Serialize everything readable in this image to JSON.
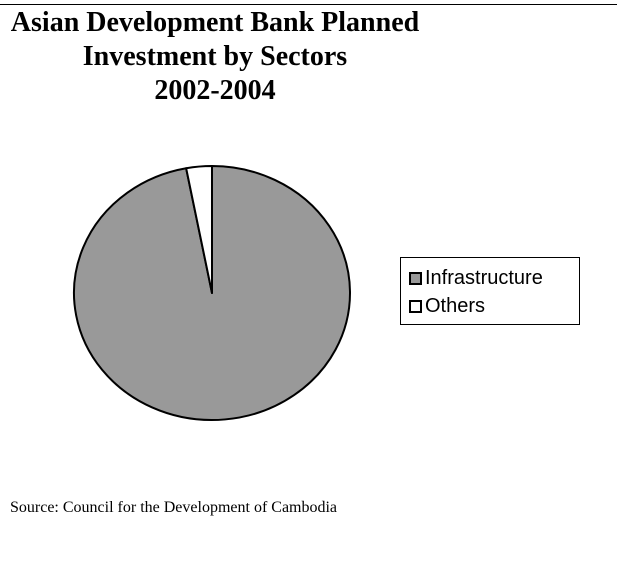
{
  "chart_data": {
    "type": "pie",
    "title_lines": [
      "Asian Development Bank Planned",
      "Investment by Sectors",
      "2002-2004"
    ],
    "categories": [
      "Infrastructure",
      "Others"
    ],
    "values": [
      97,
      3
    ],
    "colors": [
      "#999999",
      "#ffffff"
    ],
    "legend_position": "right",
    "start_angle_deg": 0,
    "direction": "clockwise"
  },
  "source": "Source: Council for the Development of Cambodia"
}
